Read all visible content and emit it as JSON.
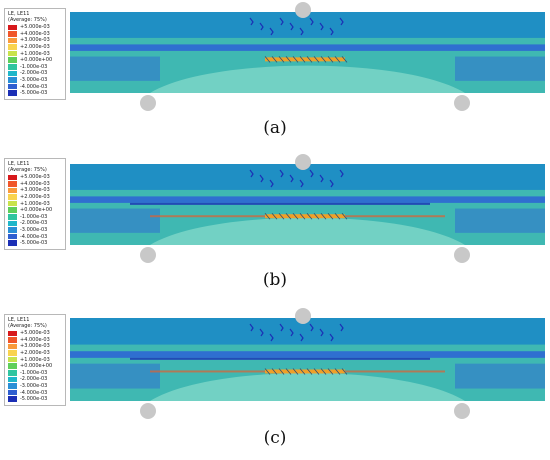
{
  "legend": {
    "title": "LE, LE11",
    "subtitle": "(Average: 75%)",
    "entries": [
      {
        "label": "+5.000e-03",
        "color": "#d7191c"
      },
      {
        "label": "+4.000e-03",
        "color": "#f0562a"
      },
      {
        "label": "+3.000e-03",
        "color": "#f99a3c"
      },
      {
        "label": "+2.000e-03",
        "color": "#f9d34e"
      },
      {
        "label": "+1.000e-03",
        "color": "#c8e34c"
      },
      {
        "label": "+0.000e+00",
        "color": "#5fcf5a"
      },
      {
        "label": "-1.000e-03",
        "color": "#30c5a0"
      },
      {
        "label": "-2.000e-03",
        "color": "#1fb7c9"
      },
      {
        "label": "-3.000e-03",
        "color": "#2a8fd6"
      },
      {
        "label": "-4.000e-03",
        "color": "#2f5fd0"
      },
      {
        "label": "-5.000e-03",
        "color": "#1c2fb5"
      }
    ]
  },
  "panels": [
    {
      "caption": "(a)"
    },
    {
      "caption": "(b)"
    },
    {
      "caption": "(c)"
    }
  ],
  "colors": {
    "beam_base": "#3fb8b2",
    "beam_top": "#1f8fc4",
    "beam_mid": "#2f6fd0",
    "beam_light": "#7fd7c8",
    "reinforcement": "#f0a028",
    "support": "#c8c8c8"
  }
}
